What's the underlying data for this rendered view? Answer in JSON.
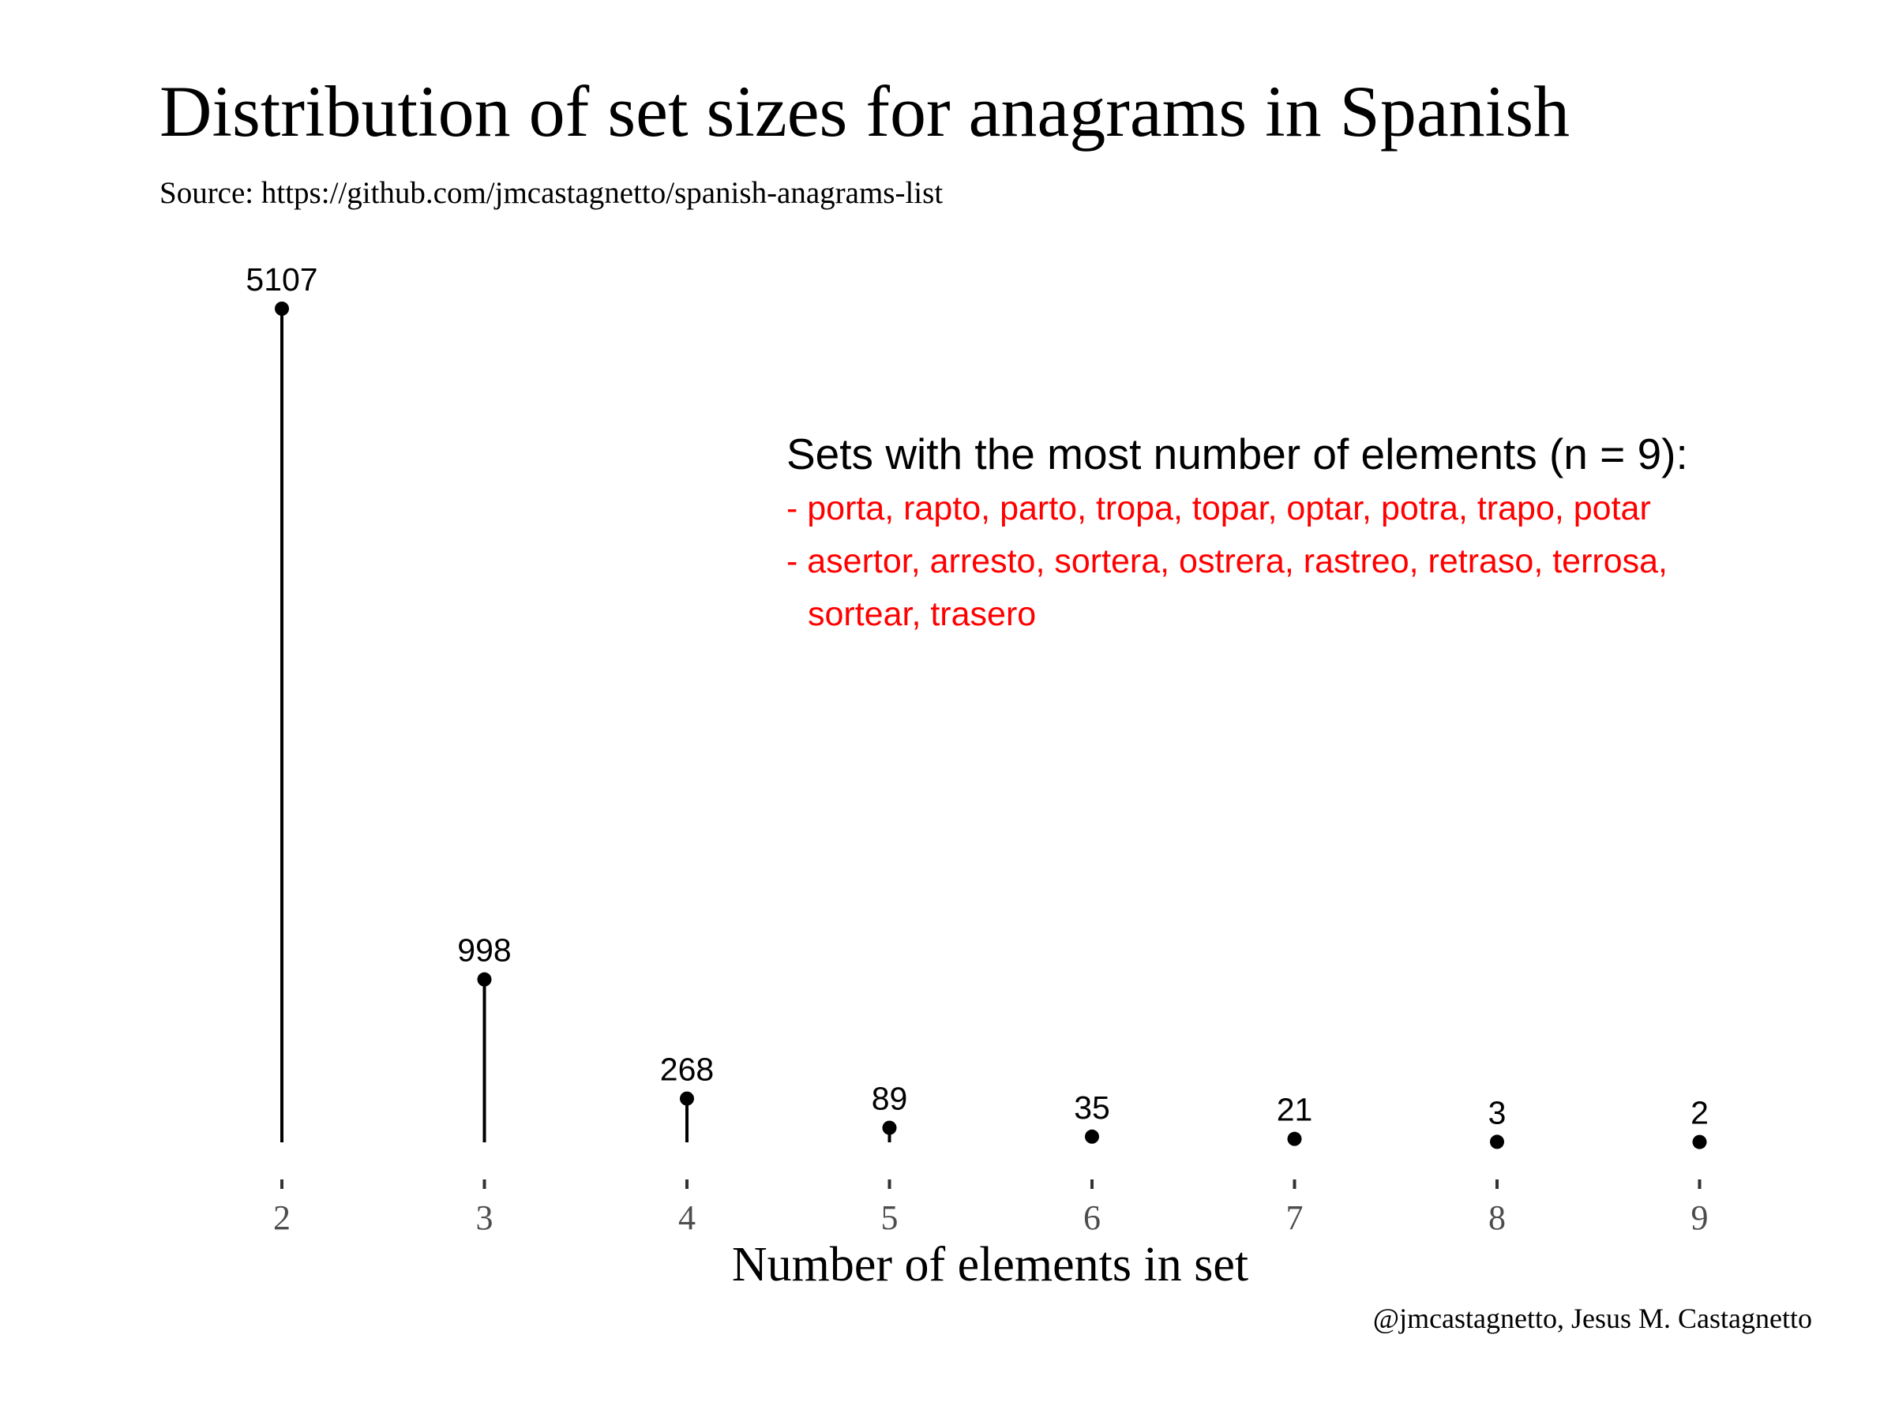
{
  "chart_data": {
    "type": "lollipop",
    "title": "Distribution of set sizes for anagrams in Spanish",
    "subtitle": "Source: https://github.com/jmcastagnetto/spanish-anagrams-list",
    "xlabel": "Number of elements in set",
    "ylabel": "",
    "caption": "@jmcastagnetto, Jesus M. Castagnetto",
    "categories": [
      "2",
      "3",
      "4",
      "5",
      "6",
      "7",
      "8",
      "9"
    ],
    "values": [
      5107,
      998,
      268,
      89,
      35,
      21,
      3,
      2
    ],
    "ylim": [
      0,
      5107
    ],
    "grid": false,
    "legend": "none",
    "colors": {
      "stem": "#000000",
      "point": "#000000",
      "annotation_sets": "#ff0000",
      "tick_labels": "#4d4d4d"
    },
    "annotation": {
      "heading": "Sets with the most number of elements (n = 9):",
      "sets": [
        [
          "- porta, rapto, parto, tropa, topar, optar, potra, trapo, potar"
        ],
        [
          "- asertor, arresto, sortera, ostrera, rastreo, retraso, terrosa,",
          "sortear, trasero"
        ]
      ]
    }
  }
}
